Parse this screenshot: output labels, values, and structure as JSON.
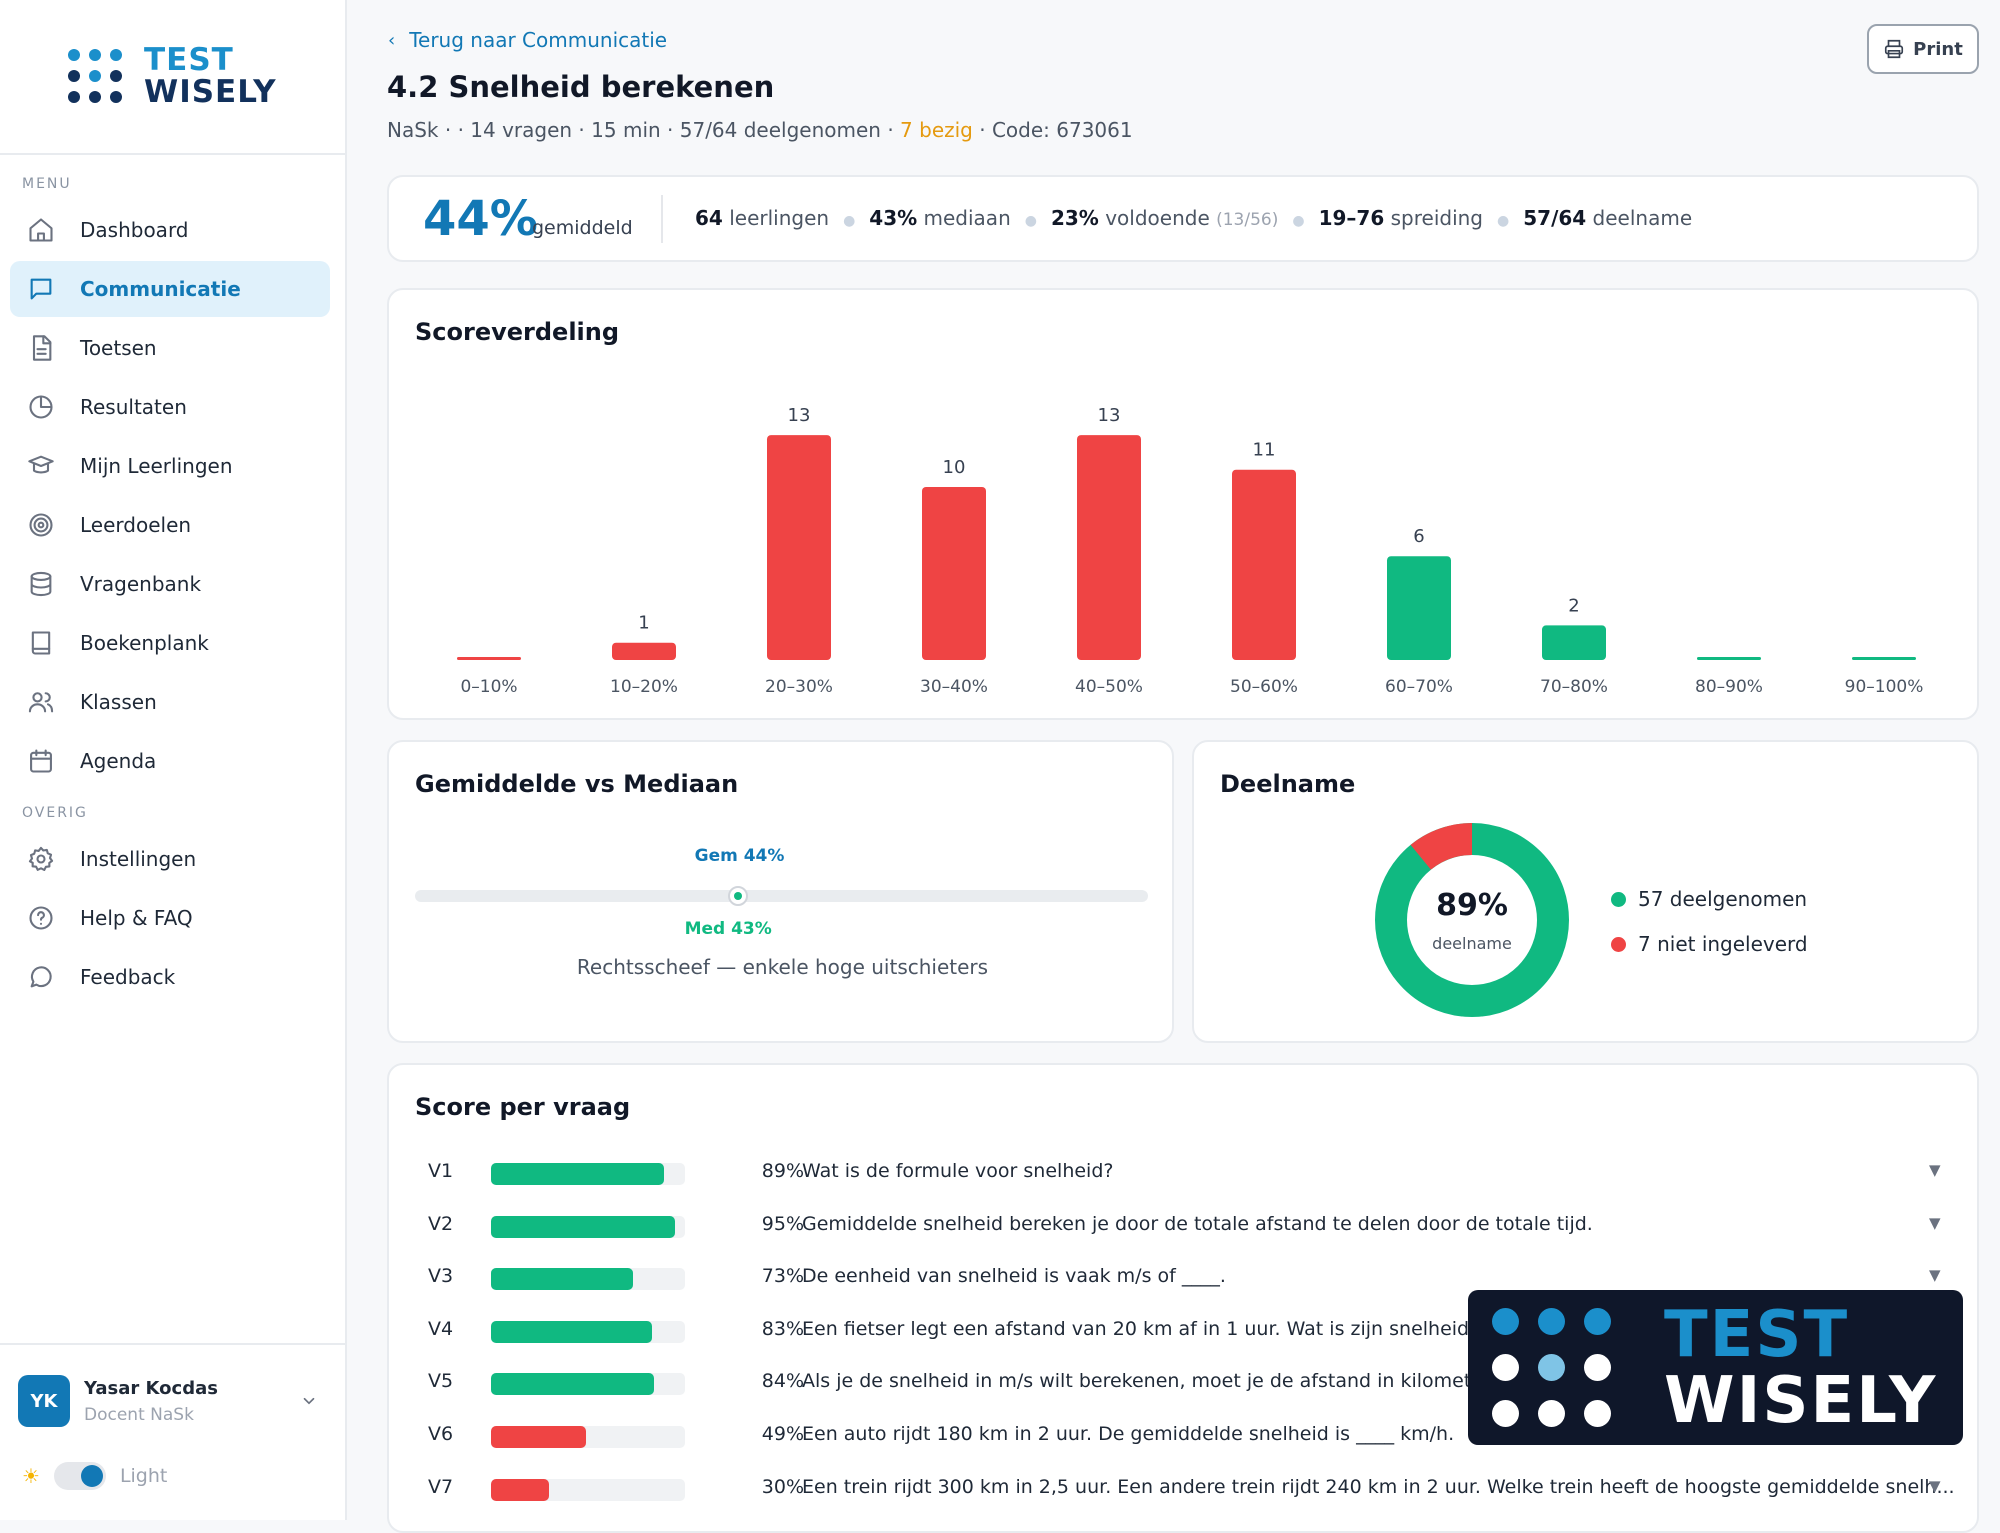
{
  "brand": {
    "line1": "TEST",
    "line2": "WISELY"
  },
  "sidebar": {
    "menu_label": "MENU",
    "items": [
      {
        "label": "Dashboard",
        "icon": "home-icon"
      },
      {
        "label": "Communicatie",
        "icon": "chat-icon",
        "active": true
      },
      {
        "label": "Toetsen",
        "icon": "document-icon"
      },
      {
        "label": "Resultaten",
        "icon": "pie-chart-icon"
      },
      {
        "label": "Mijn Leerlingen",
        "icon": "graduation-cap-icon"
      },
      {
        "label": "Leerdoelen",
        "icon": "target-icon"
      },
      {
        "label": "Vragenbank",
        "icon": "database-icon"
      },
      {
        "label": "Boekenplank",
        "icon": "book-icon"
      },
      {
        "label": "Klassen",
        "icon": "users-icon"
      },
      {
        "label": "Agenda",
        "icon": "calendar-icon"
      }
    ],
    "other_label": "OVERIG",
    "other_items": [
      {
        "label": "Instellingen",
        "icon": "gear-icon"
      },
      {
        "label": "Help & FAQ",
        "icon": "help-circle-icon"
      },
      {
        "label": "Feedback",
        "icon": "message-circle-icon"
      }
    ],
    "user": {
      "initials": "YK",
      "name": "Yasar Kocdas",
      "role": "Docent NaSk"
    },
    "theme_label": "Light"
  },
  "header": {
    "back_label": "Terug naar Communicatie",
    "title": "4.2 Snelheid berekenen",
    "meta_prefix": "NaSk · · 14 vragen · 15 min · 57/64 deelgenomen · ",
    "meta_busy": "7 bezig",
    "meta_suffix": " · Code: 673061",
    "print_label": "Print"
  },
  "stats": {
    "average": "44%",
    "average_label": "gemiddeld",
    "students_value": "64",
    "students_label": " leerlingen",
    "median_value": "43%",
    "median_label": " mediaan",
    "sufficient_value": "23%",
    "sufficient_label": " voldoende ",
    "sufficient_detail": "(13/56)",
    "spread_value": "19–76",
    "spread_label": " spreiding",
    "participation_value": "57/64",
    "participation_label": " deelname"
  },
  "distribution": {
    "title": "Scoreverdeling"
  },
  "chart_data": {
    "type": "bar",
    "categories": [
      "0–10%",
      "10–20%",
      "20–30%",
      "30–40%",
      "40–50%",
      "50–60%",
      "60–70%",
      "70–80%",
      "80–90%",
      "90–100%"
    ],
    "values": [
      0,
      1,
      13,
      10,
      13,
      11,
      6,
      2,
      0,
      0
    ],
    "bar_colors": [
      "#ef4444",
      "#ef4444",
      "#ef4444",
      "#ef4444",
      "#ef4444",
      "#ef4444",
      "#10b981",
      "#10b981",
      "#10b981",
      "#10b981"
    ]
  },
  "mean_median": {
    "title": "Gemiddelde vs Mediaan",
    "mean_label": "Gem 44%",
    "median_label": "Med 43%",
    "mean_value": 44,
    "median_value": 43,
    "note": "Rechtsscheef — enkele hoge uitschieters"
  },
  "participation": {
    "title": "Deelname",
    "percent": "89%",
    "sub": "deelname",
    "taken": 57,
    "missing": 7,
    "legend_taken": "57 deelgenomen",
    "legend_missing": "7 niet ingeleverd",
    "color_taken": "#10b981",
    "color_missing": "#ef4444"
  },
  "questions": {
    "title": "Score per vraag",
    "items": [
      {
        "id": "V1",
        "pct": "89%",
        "value": 89,
        "color": "#10b981",
        "text": "Wat is de formule voor snelheid?"
      },
      {
        "id": "V2",
        "pct": "95%",
        "value": 95,
        "color": "#10b981",
        "text": "Gemiddelde snelheid bereken je door de totale afstand te delen door de totale tijd."
      },
      {
        "id": "V3",
        "pct": "73%",
        "value": 73,
        "color": "#10b981",
        "text": "De eenheid van snelheid is vaak m/s of ____."
      },
      {
        "id": "V4",
        "pct": "83%",
        "value": 83,
        "color": "#10b981",
        "text": "Een fietser legt een afstand van 20 km af in 1 uur. Wat is zijn snelheid?"
      },
      {
        "id": "V5",
        "pct": "84%",
        "value": 84,
        "color": "#10b981",
        "text": "Als je de snelheid in m/s wilt berekenen, moet je de afstand in kilometers"
      },
      {
        "id": "V6",
        "pct": "49%",
        "value": 49,
        "color": "#ef4444",
        "text": "Een auto rijdt 180 km in 2 uur. De gemiddelde snelheid is ____ km/h."
      },
      {
        "id": "V7",
        "pct": "30%",
        "value": 30,
        "color": "#ef4444",
        "text": "Een trein rijdt 300 km in 2,5 uur. Een andere trein rijdt 240 km in 2 uur. Welke trein heeft de hoogste gemiddelde snelh..."
      }
    ]
  },
  "watermark": {
    "line1": "TEST",
    "line2": "WISELY"
  }
}
